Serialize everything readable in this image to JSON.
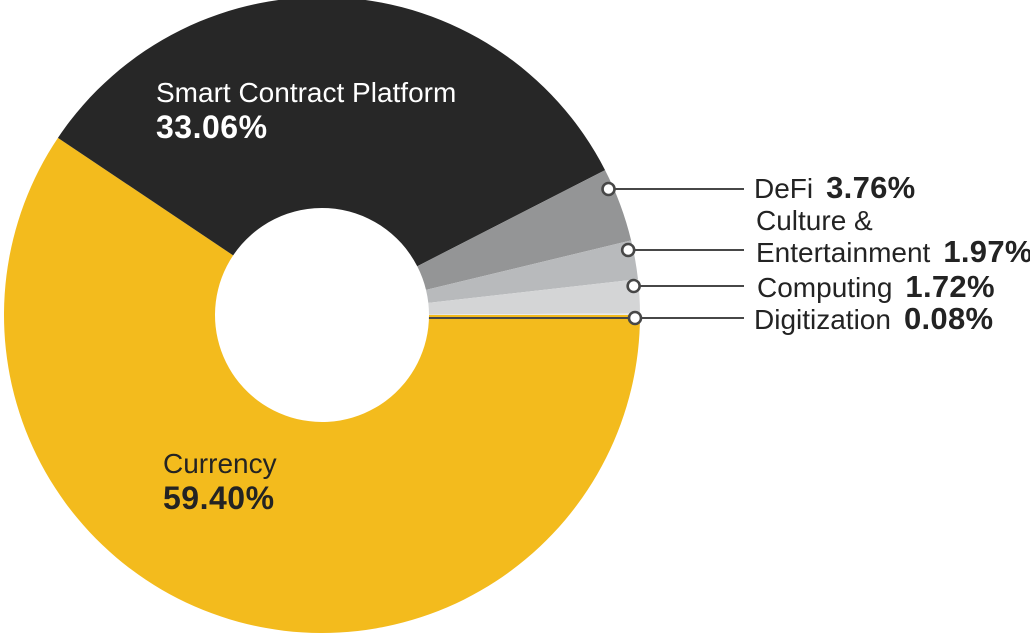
{
  "chart_data": {
    "type": "pie",
    "subtype": "donut",
    "title": "",
    "unit": "%",
    "total": 100,
    "legend_position": "labels-inside-and-callouts-right",
    "slices": [
      {
        "label": "Currency",
        "value": 59.4,
        "display": "59.40%",
        "color": "#F3BB1D"
      },
      {
        "label": "Smart Contract Platform",
        "value": 33.06,
        "display": "33.06%",
        "color": "#272727"
      },
      {
        "label": "DeFi",
        "value": 3.76,
        "display": "3.76%",
        "color": "#949596"
      },
      {
        "label": "Culture & Entertainment",
        "value": 1.97,
        "display": "1.97%",
        "color": "#B8BABC"
      },
      {
        "label": "Computing",
        "value": 1.72,
        "display": "1.72%",
        "color": "#D4D5D6"
      },
      {
        "label": "Digitization",
        "value": 0.08,
        "display": "0.08%",
        "color": "#E9EAEB"
      }
    ]
  },
  "callouts": [
    {
      "name": "DeFi",
      "value": "3.76%"
    },
    {
      "name_line1": "Culture &",
      "name_line2": "Entertainment",
      "value": "1.97%"
    },
    {
      "name": "Computing",
      "value": "1.72%"
    },
    {
      "name": "Digitization",
      "value": "0.08%"
    }
  ],
  "colors": {
    "background": "#FFFFFF",
    "leader_line": "#474747",
    "marker_fill": "#FFFFFF",
    "marker_stroke": "#474747",
    "label_on_dark": "#FFFFFF",
    "label_on_yellow": "#232323",
    "callout_text": "#232323"
  }
}
